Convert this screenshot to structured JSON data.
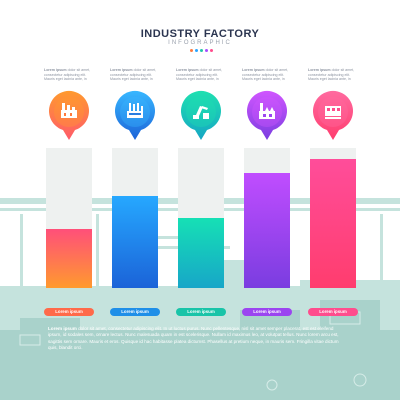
{
  "header": {
    "title": "INDUSTRY FACTORY",
    "subtitle": "INFOGRAPHIC",
    "dot_colors": [
      "#ff7a3d",
      "#2aa5ff",
      "#21c7a8",
      "#a64dff",
      "#ff4d8d"
    ]
  },
  "columns": [
    {
      "blurb_lead": "Lorem ipsum",
      "blurb_rest": "dolor sit amet, consectetur adipiscing elit. Mauris eget lacinia ante, in",
      "value": 0.42,
      "top_color": "#ff4f7a",
      "bottom_color": "#ff9a2e",
      "tag": "Lorem ipsum",
      "icon": "factory-building-icon"
    },
    {
      "blurb_lead": "Lorem ipsum",
      "blurb_rest": "dolor sit amet, consectetur adipiscing elit. Mauris eget lacinia ante, in",
      "value": 0.66,
      "top_color": "#26a8ff",
      "bottom_color": "#1b63d8",
      "tag": "Lorem ipsum",
      "icon": "refinery-icon"
    },
    {
      "blurb_lead": "Lorem ipsum",
      "blurb_rest": "dolor sit amet, consectetur adipiscing elit. Mauris eget lacinia ante, in",
      "value": 0.5,
      "top_color": "#16e0b5",
      "bottom_color": "#17a6c8",
      "tag": "Lorem ipsum",
      "icon": "robot-arm-icon"
    },
    {
      "blurb_lead": "Lorem ipsum",
      "blurb_rest": "dolor sit amet, consectetur adipiscing elit. Mauris eget lacinia ante, in",
      "value": 0.82,
      "top_color": "#c04dff",
      "bottom_color": "#7a3de0",
      "tag": "Lorem ipsum",
      "icon": "power-plant-icon"
    },
    {
      "blurb_lead": "Lorem ipsum",
      "blurb_rest": "dolor sit amet, consectetur adipiscing elit. Mauris eget lacinia ante, in",
      "value": 0.92,
      "top_color": "#ff4d9a",
      "bottom_color": "#ff3d6e",
      "tag": "Lorem ipsum",
      "icon": "conveyor-icon"
    }
  ],
  "footer": {
    "lead": "Lorem ipsum",
    "text": "dolor sit amet, consectetur adipiscing elit. In ut luctus purus. Nunc pellentesque, nisl sit amet semper placerat, est est eleifend ipsum, id sodales sem, ornare lectus. Nunc malesuada quam in est scelerisque. Nullam id maximus leo, at volutpat tellus. Nunc lorem arcu est, sagittis sem ornare. Mauris et eros. Quisque id hac habitasse platea dictumst. Phasellus at pretium neque, in mauris sem. Fringilla vitae dictum quis, blandit orci."
  },
  "background": {
    "color": "#b9dcd6"
  }
}
